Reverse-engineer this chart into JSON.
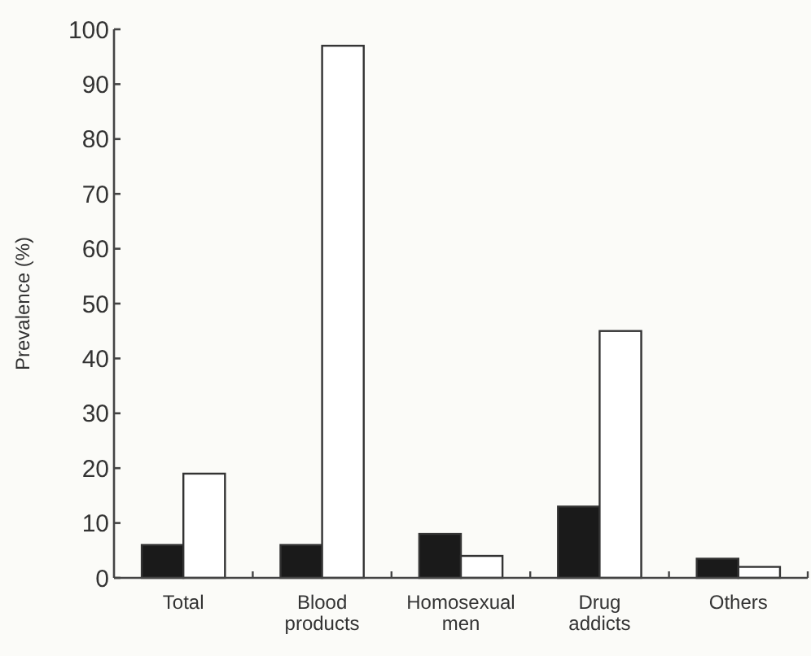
{
  "chart_data": {
    "type": "bar",
    "ylabel": "Prevalence (%)",
    "categories": [
      "Total",
      "Blood products",
      "Homosexual men",
      "Drug addicts",
      "Others"
    ],
    "series": [
      {
        "color": "#1a1a1a",
        "values": [
          6,
          6,
          8,
          13,
          3.5
        ]
      },
      {
        "color": "#ffffff",
        "values": [
          19,
          97,
          4,
          45,
          2
        ]
      }
    ],
    "ylim": [
      0,
      100
    ],
    "yticks": [
      0,
      10,
      20,
      30,
      40,
      50,
      60,
      70,
      80,
      90,
      100
    ],
    "grid": false
  }
}
